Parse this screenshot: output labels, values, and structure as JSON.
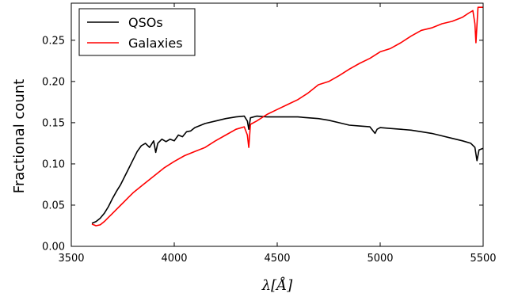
{
  "chart_data": {
    "type": "line",
    "title": "",
    "xlabel": "λ[Å]",
    "ylabel": "Fractional count",
    "xlim": [
      3500,
      5500
    ],
    "ylim": [
      0.0,
      0.295
    ],
    "xticks": [
      3500,
      4000,
      4500,
      5000,
      5500
    ],
    "xtick_labels": [
      "3500",
      "4000",
      "4500",
      "5000",
      "5500"
    ],
    "yticks": [
      0.0,
      0.05,
      0.1,
      0.15,
      0.2,
      0.25
    ],
    "ytick_labels": [
      "0.00",
      "0.05",
      "0.10",
      "0.15",
      "0.20",
      "0.25"
    ],
    "grid": false,
    "legend_position": "top-left",
    "series": [
      {
        "name": "QSOs",
        "color": "#000000",
        "x": [
          3600,
          3620,
          3640,
          3660,
          3680,
          3700,
          3720,
          3740,
          3760,
          3780,
          3800,
          3820,
          3840,
          3860,
          3880,
          3900,
          3910,
          3920,
          3940,
          3960,
          3980,
          4000,
          4020,
          4040,
          4060,
          4080,
          4100,
          4150,
          4200,
          4250,
          4300,
          4340,
          4355,
          4362,
          4370,
          4400,
          4450,
          4500,
          4550,
          4600,
          4650,
          4700,
          4750,
          4800,
          4850,
          4900,
          4950,
          4975,
          4985,
          5000,
          5050,
          5100,
          5150,
          5200,
          5250,
          5300,
          5350,
          5400,
          5440,
          5460,
          5470,
          5480,
          5500
        ],
        "values": [
          0.028,
          0.03,
          0.034,
          0.04,
          0.048,
          0.058,
          0.067,
          0.075,
          0.085,
          0.095,
          0.105,
          0.115,
          0.122,
          0.125,
          0.12,
          0.128,
          0.114,
          0.125,
          0.13,
          0.127,
          0.13,
          0.128,
          0.135,
          0.133,
          0.139,
          0.14,
          0.144,
          0.149,
          0.152,
          0.155,
          0.157,
          0.158,
          0.152,
          0.142,
          0.156,
          0.158,
          0.157,
          0.157,
          0.157,
          0.157,
          0.156,
          0.155,
          0.153,
          0.15,
          0.147,
          0.146,
          0.145,
          0.137,
          0.142,
          0.144,
          0.143,
          0.142,
          0.141,
          0.139,
          0.137,
          0.134,
          0.131,
          0.128,
          0.125,
          0.12,
          0.104,
          0.117,
          0.119
        ]
      },
      {
        "name": "Galaxies",
        "color": "#ff0000",
        "x": [
          3600,
          3620,
          3640,
          3660,
          3680,
          3700,
          3720,
          3740,
          3760,
          3780,
          3800,
          3850,
          3900,
          3950,
          4000,
          4050,
          4100,
          4150,
          4200,
          4250,
          4300,
          4340,
          4355,
          4362,
          4370,
          4400,
          4450,
          4500,
          4550,
          4600,
          4650,
          4700,
          4750,
          4800,
          4850,
          4900,
          4950,
          5000,
          5050,
          5100,
          5150,
          5200,
          5250,
          5300,
          5350,
          5400,
          5430,
          5450,
          5460,
          5465,
          5475,
          5500
        ],
        "values": [
          0.027,
          0.025,
          0.026,
          0.03,
          0.035,
          0.04,
          0.045,
          0.05,
          0.055,
          0.06,
          0.065,
          0.075,
          0.085,
          0.095,
          0.103,
          0.11,
          0.115,
          0.12,
          0.128,
          0.135,
          0.142,
          0.145,
          0.135,
          0.12,
          0.148,
          0.152,
          0.16,
          0.166,
          0.172,
          0.178,
          0.186,
          0.196,
          0.2,
          0.207,
          0.215,
          0.222,
          0.228,
          0.236,
          0.24,
          0.247,
          0.255,
          0.262,
          0.265,
          0.27,
          0.273,
          0.278,
          0.283,
          0.286,
          0.27,
          0.247,
          0.29,
          0.29
        ]
      }
    ]
  }
}
